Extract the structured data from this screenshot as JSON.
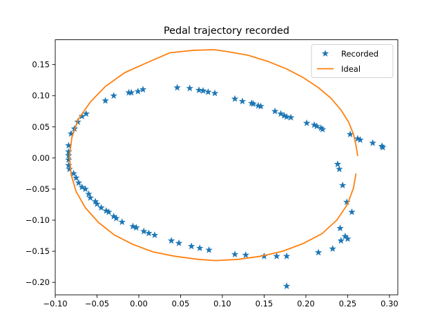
{
  "chart_data": {
    "type": "scatter",
    "title": "Pedal trajectory recorded",
    "xlabel": "",
    "ylabel": "",
    "xlim": [
      -0.1,
      0.31
    ],
    "ylim": [
      -0.22,
      0.19
    ],
    "xticks": [
      -0.1,
      -0.05,
      0.0,
      0.05,
      0.1,
      0.15,
      0.2,
      0.25,
      0.3
    ],
    "xtick_labels": [
      "−0.10",
      "−0.05",
      "0.00",
      "0.05",
      "0.10",
      "0.15",
      "0.20",
      "0.25",
      "0.30"
    ],
    "yticks": [
      -0.2,
      -0.15,
      -0.1,
      -0.05,
      0.0,
      0.05,
      0.1,
      0.15
    ],
    "ytick_labels": [
      "−0.20",
      "−0.15",
      "−0.10",
      "−0.05",
      "0.00",
      "0.05",
      "0.10",
      "0.15"
    ],
    "grid": false,
    "legend": {
      "position": "upper right",
      "entries": [
        "Recorded",
        "Ideal"
      ]
    },
    "series": [
      {
        "name": "Recorded",
        "type": "scatter",
        "marker": "star",
        "color": "#1f77b4",
        "points": [
          [
            -0.084,
            0.02
          ],
          [
            -0.084,
            0.01
          ],
          [
            -0.084,
            0.004
          ],
          [
            -0.084,
            -0.003
          ],
          [
            -0.084,
            -0.012
          ],
          [
            -0.083,
            -0.018
          ],
          [
            -0.081,
            0.039
          ],
          [
            -0.078,
            -0.025
          ],
          [
            -0.077,
            0.047
          ],
          [
            -0.075,
            -0.032
          ],
          [
            -0.073,
            0.058
          ],
          [
            -0.072,
            -0.04
          ],
          [
            -0.068,
            0.067
          ],
          [
            -0.068,
            -0.047
          ],
          [
            -0.064,
            -0.05
          ],
          [
            -0.063,
            0.071
          ],
          [
            -0.06,
            -0.058
          ],
          [
            -0.058,
            -0.064
          ],
          [
            -0.052,
            -0.07
          ],
          [
            -0.05,
            -0.074
          ],
          [
            -0.045,
            -0.08
          ],
          [
            -0.04,
            0.092
          ],
          [
            -0.039,
            -0.085
          ],
          [
            -0.036,
            -0.087
          ],
          [
            -0.03,
            0.1
          ],
          [
            -0.03,
            -0.094
          ],
          [
            -0.027,
            -0.097
          ],
          [
            -0.02,
            -0.103
          ],
          [
            -0.012,
            0.105
          ],
          [
            -0.009,
            0.105
          ],
          [
            -0.007,
            -0.11
          ],
          [
            -0.003,
            -0.112
          ],
          [
            -0.001,
            0.107
          ],
          [
            0.005,
            0.11
          ],
          [
            0.006,
            -0.118
          ],
          [
            0.012,
            -0.121
          ],
          [
            0.019,
            -0.124
          ],
          [
            0.039,
            -0.133
          ],
          [
            0.046,
            0.113
          ],
          [
            0.048,
            -0.137
          ],
          [
            0.061,
            0.112
          ],
          [
            0.063,
            -0.142
          ],
          [
            0.072,
            0.109
          ],
          [
            0.073,
            -0.145
          ],
          [
            0.077,
            0.108
          ],
          [
            0.083,
            0.106
          ],
          [
            0.084,
            -0.148
          ],
          [
            0.091,
            0.104
          ],
          [
            0.115,
            0.095
          ],
          [
            0.115,
            -0.155
          ],
          [
            0.124,
            0.091
          ],
          [
            0.128,
            -0.156
          ],
          [
            0.135,
            0.088
          ],
          [
            0.137,
            0.087
          ],
          [
            0.143,
            0.084
          ],
          [
            0.146,
            0.083
          ],
          [
            0.15,
            -0.158
          ],
          [
            0.163,
            0.075
          ],
          [
            0.165,
            -0.158
          ],
          [
            0.17,
            0.071
          ],
          [
            0.174,
            0.068
          ],
          [
            0.177,
            0.066
          ],
          [
            0.177,
            -0.158
          ],
          [
            0.177,
            -0.206
          ],
          [
            0.182,
            0.065
          ],
          [
            0.201,
            0.056
          ],
          [
            0.21,
            0.053
          ],
          [
            0.213,
            0.051
          ],
          [
            0.218,
            0.048
          ],
          [
            0.22,
            0.046
          ],
          [
            0.215,
            -0.152
          ],
          [
            0.232,
            -0.146
          ],
          [
            0.238,
            -0.01
          ],
          [
            0.24,
            -0.018
          ],
          [
            0.241,
            -0.113
          ],
          [
            0.242,
            -0.133
          ],
          [
            0.244,
            -0.044
          ],
          [
            0.247,
            -0.126
          ],
          [
            0.249,
            -0.071
          ],
          [
            0.25,
            -0.13
          ],
          [
            0.253,
            0.038
          ],
          [
            0.255,
            -0.087
          ],
          [
            0.262,
            0.031
          ],
          [
            0.265,
            0.029
          ],
          [
            0.28,
            0.024
          ],
          [
            0.291,
            0.019
          ],
          [
            0.292,
            0.017
          ]
        ]
      },
      {
        "name": "Ideal",
        "type": "line",
        "color": "#ff7f0e",
        "points": [
          [
            0.262,
            0.003
          ],
          [
            0.26,
            0.02
          ],
          [
            0.257,
            0.038
          ],
          [
            0.251,
            0.058
          ],
          [
            0.242,
            0.077
          ],
          [
            0.23,
            0.096
          ],
          [
            0.215,
            0.113
          ],
          [
            0.197,
            0.129
          ],
          [
            0.177,
            0.143
          ],
          [
            0.155,
            0.155
          ],
          [
            0.131,
            0.165
          ],
          [
            0.106,
            0.171
          ],
          [
            0.09,
            0.174
          ],
          [
            0.065,
            0.173
          ],
          [
            0.037,
            0.169
          ],
          [
            0.008,
            0.152
          ],
          [
            -0.017,
            0.137
          ],
          [
            -0.04,
            0.115
          ],
          [
            -0.058,
            0.09
          ],
          [
            -0.072,
            0.063
          ],
          [
            -0.08,
            0.034
          ],
          [
            -0.083,
            0.003
          ],
          [
            -0.081,
            -0.027
          ],
          [
            -0.075,
            -0.054
          ],
          [
            -0.064,
            -0.08
          ],
          [
            -0.048,
            -0.104
          ],
          [
            -0.029,
            -0.124
          ],
          [
            -0.007,
            -0.139
          ],
          [
            0.017,
            -0.151
          ],
          [
            0.043,
            -0.158
          ],
          [
            0.071,
            -0.163
          ],
          [
            0.092,
            -0.165
          ],
          [
            0.119,
            -0.163
          ],
          [
            0.146,
            -0.158
          ],
          [
            0.172,
            -0.15
          ],
          [
            0.196,
            -0.138
          ],
          [
            0.219,
            -0.122
          ],
          [
            0.237,
            -0.1
          ],
          [
            0.25,
            -0.074
          ],
          [
            0.257,
            -0.048
          ],
          [
            0.26,
            -0.025
          ]
        ]
      }
    ]
  }
}
